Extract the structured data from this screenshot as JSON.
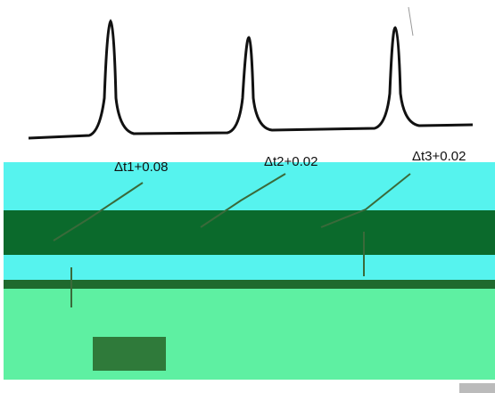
{
  "labels": [
    "Δt1+0.08",
    "Δt2+0.02",
    "Δt3+0.02"
  ]
}
